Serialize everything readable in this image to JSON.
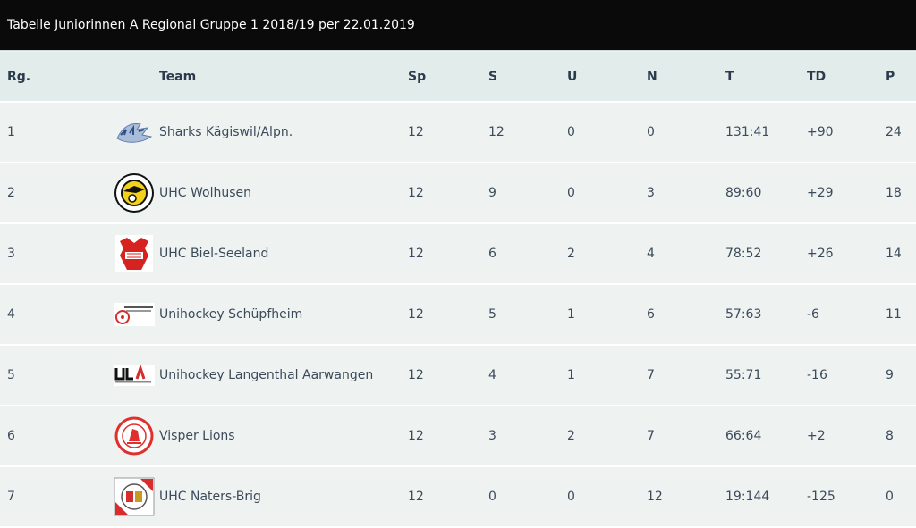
{
  "title": "Tabelle Juniorinnen A Regional Gruppe 1 2018/19 per 22.01.2019",
  "headers": {
    "rank": "Rg.",
    "team": "Team",
    "sp": "Sp",
    "s": "S",
    "u": "U",
    "n": "N",
    "t": "T",
    "td": "TD",
    "p": "P"
  },
  "rows": [
    {
      "rank": "1",
      "logo": "sharks-logo",
      "team": "Sharks Kägiswil/Alpn.",
      "sp": "12",
      "s": "12",
      "u": "0",
      "n": "0",
      "t": "131:41",
      "td": "+90",
      "p": "24"
    },
    {
      "rank": "2",
      "logo": "wolhusen-logo",
      "team": "UHC Wolhusen",
      "sp": "12",
      "s": "9",
      "u": "0",
      "n": "3",
      "t": "89:60",
      "td": "+29",
      "p": "18"
    },
    {
      "rank": "3",
      "logo": "biel-seeland-logo",
      "team": "UHC Biel-Seeland",
      "sp": "12",
      "s": "6",
      "u": "2",
      "n": "4",
      "t": "78:52",
      "td": "+26",
      "p": "14"
    },
    {
      "rank": "4",
      "logo": "schuepfheim-logo",
      "team": "Unihockey Schüpfheim",
      "sp": "12",
      "s": "5",
      "u": "1",
      "n": "6",
      "t": "57:63",
      "td": "-6",
      "p": "11"
    },
    {
      "rank": "5",
      "logo": "langenthal-aarwangen-logo",
      "team": "Unihockey Langenthal Aarwangen",
      "sp": "12",
      "s": "4",
      "u": "1",
      "n": "7",
      "t": "55:71",
      "td": "-16",
      "p": "9"
    },
    {
      "rank": "6",
      "logo": "visper-lions-logo",
      "team": "Visper Lions",
      "sp": "12",
      "s": "3",
      "u": "2",
      "n": "7",
      "t": "66:64",
      "td": "+2",
      "p": "8"
    },
    {
      "rank": "7",
      "logo": "naters-brig-logo",
      "team": "UHC Naters-Brig",
      "sp": "12",
      "s": "0",
      "u": "0",
      "n": "12",
      "t": "19:144",
      "td": "-125",
      "p": "0"
    }
  ]
}
